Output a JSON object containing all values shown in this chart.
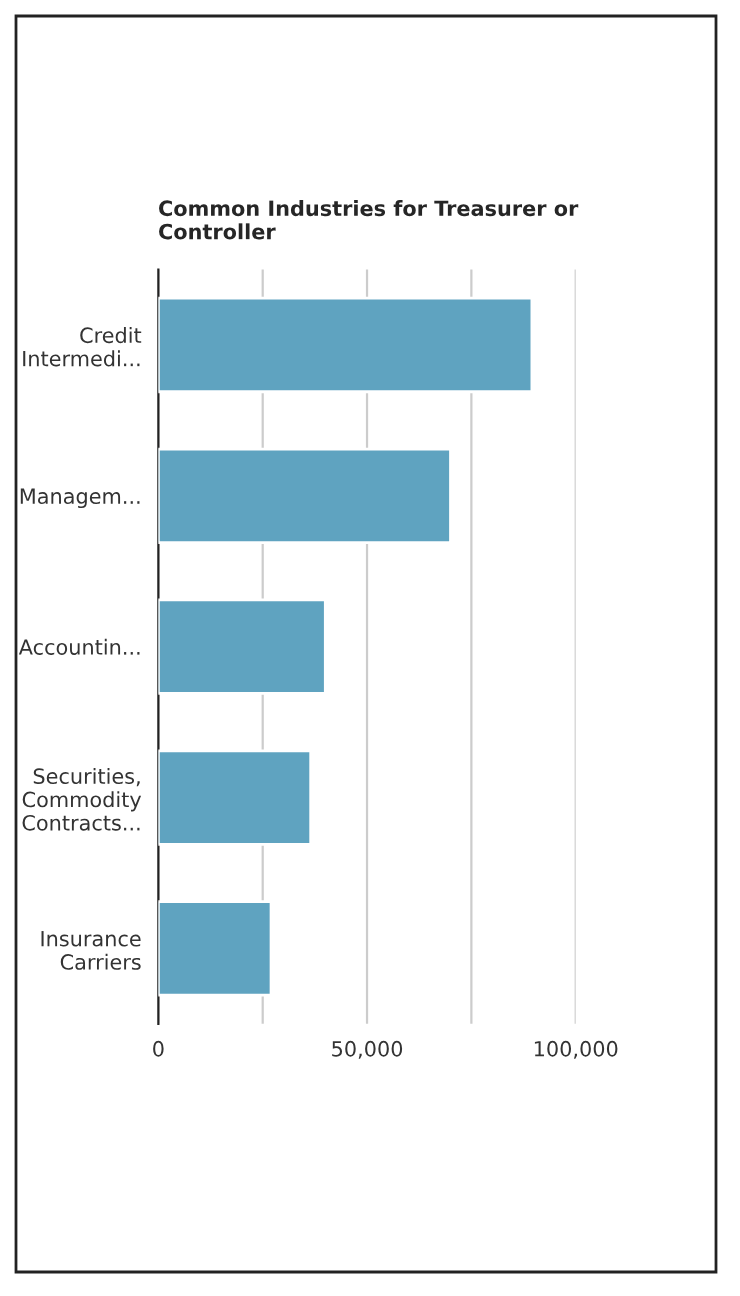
{
  "chart_data": {
    "type": "bar",
    "orientation": "horizontal",
    "title": "Common Industries for Treasurer or\nController",
    "categories": [
      "Credit\nIntermedi...",
      "Managem...",
      "Accountin...",
      "Securities,\nCommodity\nContracts...",
      "Insurance\nCarriers"
    ],
    "values": [
      89500,
      70000,
      40000,
      36500,
      27000
    ],
    "color": "#5fa3c0",
    "xlim": [
      0,
      100000
    ],
    "xticks": [
      0,
      {
        "value": 25000,
        "label": null
      },
      {
        "value": 50000,
        "label": "50,000"
      },
      {
        "value": 75000,
        "label": null
      },
      {
        "value": 100000,
        "label": "100,000"
      }
    ],
    "grid": "x"
  }
}
